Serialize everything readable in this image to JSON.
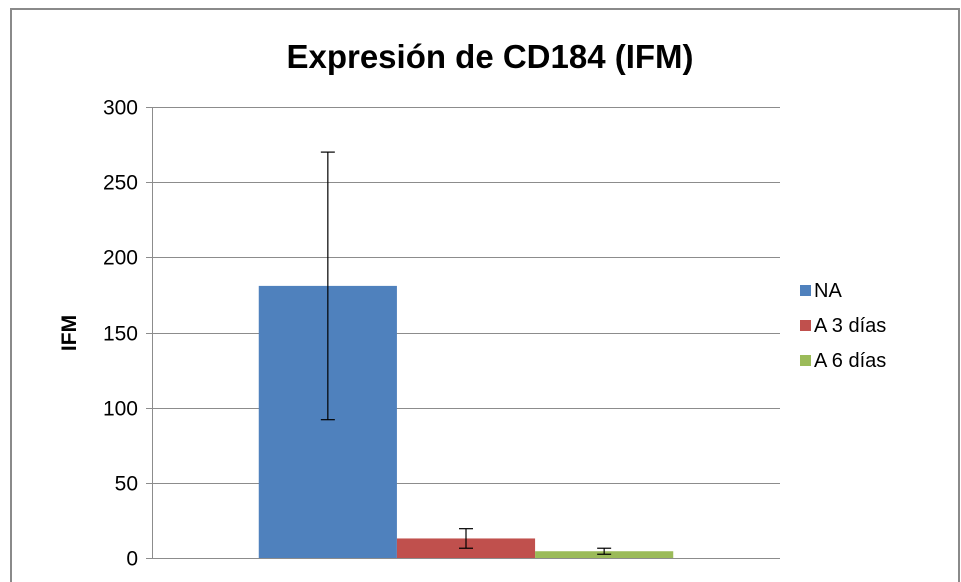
{
  "chart_data": {
    "type": "bar",
    "title": "Expresión de CD184 (IFM)",
    "xlabel": "",
    "ylabel": "IFM",
    "ylim": [
      0,
      300
    ],
    "yticks": [
      0,
      50,
      100,
      150,
      200,
      250,
      300
    ],
    "grid": true,
    "legend_position": "right",
    "categories": [
      ""
    ],
    "series": [
      {
        "name": "NA",
        "values": [
          181
        ],
        "error": [
          89
        ],
        "color": "#4f81bd"
      },
      {
        "name": "A 3 días",
        "values": [
          13
        ],
        "error": [
          6.5
        ],
        "color": "#c0504d"
      },
      {
        "name": "A 6 días",
        "values": [
          4.5
        ],
        "error": [
          2
        ],
        "color": "#9bbb59"
      }
    ]
  }
}
